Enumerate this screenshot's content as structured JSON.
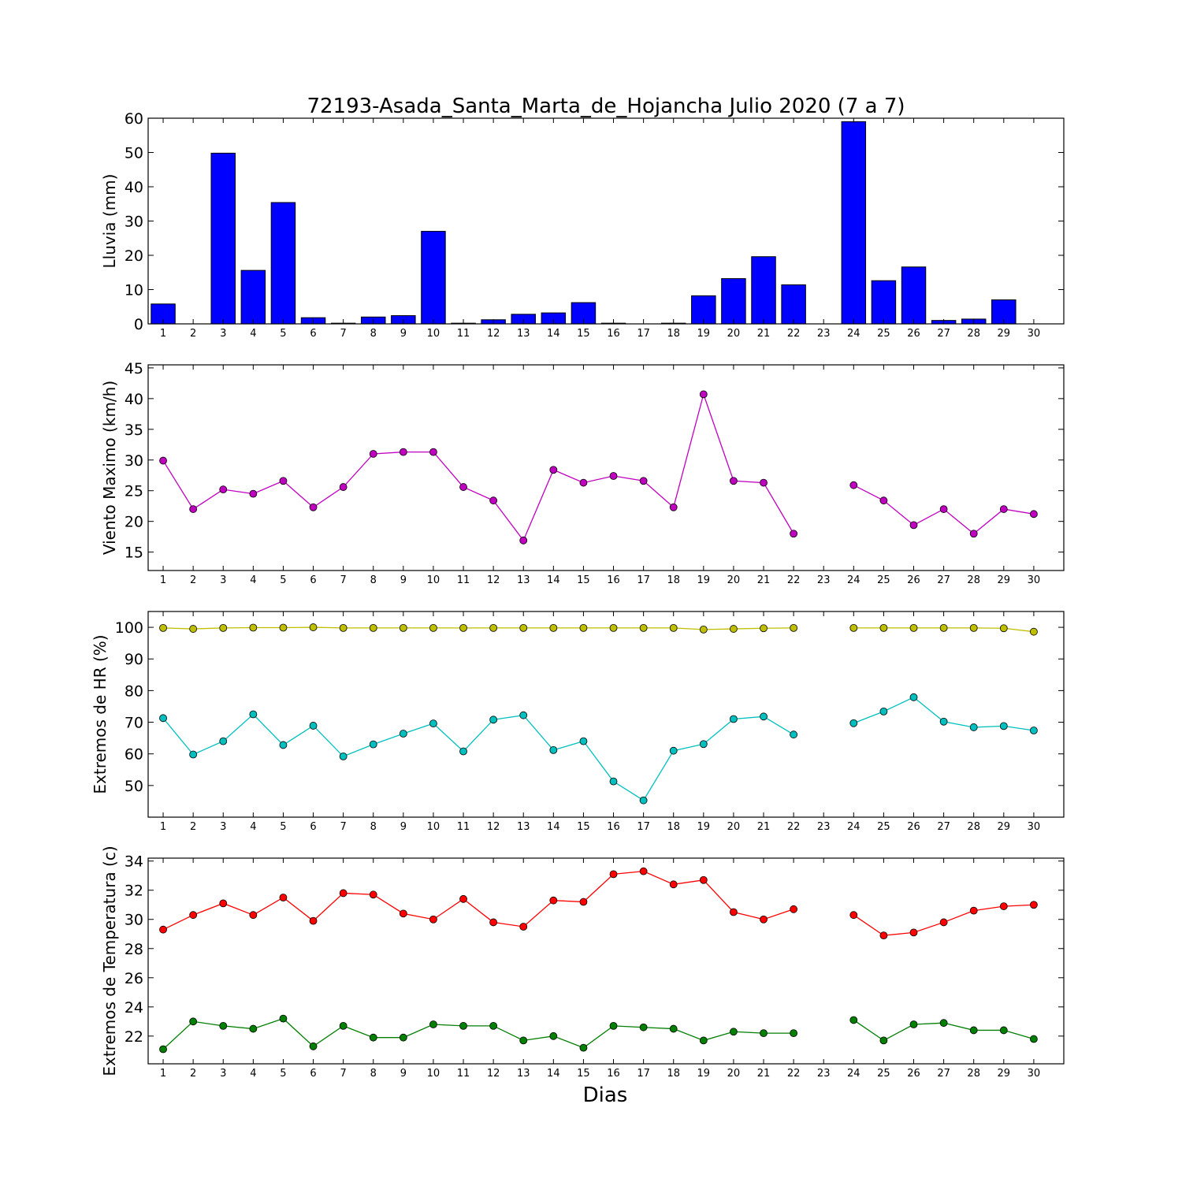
{
  "title": "72193-Asada_Santa_Marta_de_Hojancha Julio 2020  (7 a 7)",
  "xlabel": "Dias",
  "chart_data": [
    {
      "type": "bar",
      "ylabel": "Lluvia (mm)",
      "ylim": [
        0,
        60
      ],
      "yticks": [
        0,
        10,
        20,
        30,
        40,
        50,
        60
      ],
      "categories": [
        1,
        2,
        3,
        4,
        5,
        6,
        7,
        8,
        9,
        10,
        11,
        12,
        13,
        14,
        15,
        16,
        17,
        18,
        19,
        20,
        21,
        22,
        23,
        24,
        25,
        26,
        27,
        28,
        29,
        30
      ],
      "series": [
        {
          "color": "#0000ff",
          "values": [
            5.8,
            0,
            49.8,
            15.6,
            35.4,
            1.8,
            0.2,
            2.0,
            2.4,
            27.0,
            0.2,
            1.2,
            2.8,
            3.2,
            6.2,
            0.2,
            0,
            0.2,
            8.2,
            13.2,
            19.6,
            11.4,
            0,
            59.0,
            12.6,
            16.6,
            1.0,
            1.4,
            7.0,
            0
          ]
        }
      ]
    },
    {
      "type": "line",
      "ylabel": "Viento Maximo (km/h)",
      "ylim": [
        12,
        45.5
      ],
      "yticks": [
        15,
        20,
        25,
        30,
        35,
        40,
        45
      ],
      "series": [
        {
          "color": "#bf00bf",
          "values": [
            29.9,
            22.0,
            25.2,
            24.5,
            26.6,
            22.3,
            25.6,
            31.0,
            31.3,
            31.3,
            25.6,
            23.4,
            16.9,
            28.4,
            26.3,
            27.4,
            26.6,
            22.3,
            40.7,
            26.6,
            26.3,
            18.0,
            null,
            25.9,
            23.4,
            19.4,
            22.0,
            18.0,
            22.0,
            21.2
          ]
        }
      ]
    },
    {
      "type": "line",
      "ylabel": "Extremos de HR (%)",
      "ylim": [
        40,
        105
      ],
      "yticks": [
        50,
        60,
        70,
        80,
        90,
        100
      ],
      "series": [
        {
          "color": "#bfbf00",
          "values": [
            99.8,
            99.5,
            99.8,
            99.9,
            99.9,
            100.0,
            99.8,
            99.8,
            99.8,
            99.8,
            99.8,
            99.8,
            99.8,
            99.8,
            99.8,
            99.8,
            99.8,
            99.8,
            99.3,
            99.5,
            99.7,
            99.8,
            null,
            99.8,
            99.8,
            99.8,
            99.8,
            99.8,
            99.7,
            98.6
          ]
        },
        {
          "color": "#00bfbf",
          "values": [
            71.3,
            59.8,
            64.0,
            72.5,
            62.8,
            68.9,
            59.2,
            63.0,
            66.4,
            69.6,
            60.8,
            70.8,
            72.2,
            61.2,
            64.0,
            51.3,
            45.3,
            61.0,
            63.1,
            71.0,
            71.8,
            66.1,
            null,
            69.7,
            73.4,
            77.9,
            70.2,
            68.4,
            68.8,
            67.4
          ]
        }
      ]
    },
    {
      "type": "line",
      "ylabel": "Extremos de Temperatura (c)",
      "ylim": [
        20.1,
        34.2
      ],
      "yticks": [
        22,
        24,
        26,
        28,
        30,
        32,
        34
      ],
      "series": [
        {
          "color": "#ff0000",
          "values": [
            29.3,
            30.3,
            31.1,
            30.3,
            31.5,
            29.9,
            31.8,
            31.7,
            30.4,
            30.0,
            31.4,
            29.8,
            29.5,
            31.3,
            31.2,
            33.1,
            33.3,
            32.4,
            32.7,
            30.5,
            30.0,
            30.7,
            null,
            30.3,
            28.9,
            29.1,
            29.8,
            30.6,
            30.9,
            31.0
          ]
        },
        {
          "color": "#007f00",
          "values": [
            21.1,
            23.0,
            22.7,
            22.5,
            23.2,
            21.3,
            22.7,
            21.9,
            21.9,
            22.8,
            22.7,
            22.7,
            21.7,
            22.0,
            21.2,
            22.7,
            22.6,
            22.5,
            21.7,
            22.3,
            22.2,
            22.2,
            null,
            23.1,
            21.7,
            22.8,
            22.9,
            22.4,
            22.4,
            21.8
          ]
        }
      ]
    }
  ]
}
